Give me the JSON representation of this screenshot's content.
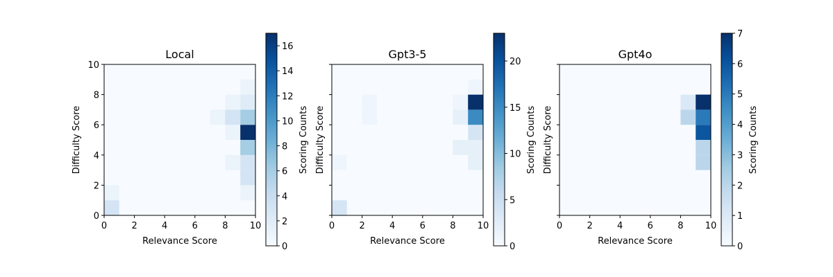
{
  "chart_data": [
    {
      "type": "heatmap",
      "title": "Local",
      "xlabel": "Relevance Score",
      "ylabel": "Difficulty Score",
      "xlim": [
        0,
        10
      ],
      "ylim": [
        0,
        10
      ],
      "x_ticks": [
        0,
        2,
        4,
        6,
        8,
        10
      ],
      "y_ticks": [
        0,
        2,
        4,
        6,
        8,
        10
      ],
      "y_tick_labels_visible": true,
      "colormap": "Blues",
      "colorbar": {
        "label": "Scoring Counts",
        "min": 0,
        "max": 17,
        "ticks": [
          0,
          2,
          4,
          6,
          8,
          10,
          12,
          14,
          16
        ]
      },
      "cells": [
        {
          "x": 0,
          "y": 0,
          "value": 3
        },
        {
          "x": 0,
          "y": 1,
          "value": 1
        },
        {
          "x": 9,
          "y": 1,
          "value": 1
        },
        {
          "x": 9,
          "y": 2,
          "value": 3
        },
        {
          "x": 9,
          "y": 3,
          "value": 3
        },
        {
          "x": 8,
          "y": 3,
          "value": 1
        },
        {
          "x": 9,
          "y": 4,
          "value": 6
        },
        {
          "x": 8,
          "y": 5,
          "value": 1
        },
        {
          "x": 9,
          "y": 5,
          "value": 17
        },
        {
          "x": 7,
          "y": 6,
          "value": 1
        },
        {
          "x": 8,
          "y": 6,
          "value": 3
        },
        {
          "x": 9,
          "y": 6,
          "value": 6
        },
        {
          "x": 8,
          "y": 7,
          "value": 1
        },
        {
          "x": 9,
          "y": 7,
          "value": 2
        },
        {
          "x": 9,
          "y": 8,
          "value": 1
        }
      ]
    },
    {
      "type": "heatmap",
      "title": "Gpt3-5",
      "xlabel": "Relevance Score",
      "ylabel": "Difficulty Score",
      "xlim": [
        0,
        10
      ],
      "ylim": [
        0,
        10
      ],
      "x_ticks": [
        0,
        2,
        4,
        6,
        8,
        10
      ],
      "y_ticks": [
        0,
        2,
        4,
        6,
        8,
        10
      ],
      "y_tick_labels_visible": false,
      "colormap": "Blues",
      "colorbar": {
        "label": "Scoring Counts",
        "min": 0,
        "max": 23,
        "ticks": [
          0,
          5,
          10,
          15,
          20
        ]
      },
      "cells": [
        {
          "x": 0,
          "y": 0,
          "value": 4
        },
        {
          "x": 0,
          "y": 3,
          "value": 1
        },
        {
          "x": 9,
          "y": 3,
          "value": 2
        },
        {
          "x": 8,
          "y": 4,
          "value": 2
        },
        {
          "x": 9,
          "y": 4,
          "value": 2
        },
        {
          "x": 9,
          "y": 5,
          "value": 4
        },
        {
          "x": 2,
          "y": 6,
          "value": 1
        },
        {
          "x": 8,
          "y": 6,
          "value": 2
        },
        {
          "x": 9,
          "y": 6,
          "value": 15
        },
        {
          "x": 2,
          "y": 7,
          "value": 1
        },
        {
          "x": 8,
          "y": 7,
          "value": 1
        },
        {
          "x": 9,
          "y": 7,
          "value": 23
        },
        {
          "x": 9,
          "y": 8,
          "value": 1
        }
      ]
    },
    {
      "type": "heatmap",
      "title": "Gpt4o",
      "xlabel": "Relevance Score",
      "ylabel": "Difficulty Score",
      "xlim": [
        0,
        10
      ],
      "ylim": [
        0,
        10
      ],
      "x_ticks": [
        0,
        2,
        4,
        6,
        8,
        10
      ],
      "y_ticks": [
        0,
        2,
        4,
        6,
        8,
        10
      ],
      "y_tick_labels_visible": false,
      "colormap": "Blues",
      "colorbar": {
        "label": "Scoring Counts",
        "min": 0,
        "max": 7,
        "ticks": [
          0,
          1,
          2,
          3,
          4,
          5,
          6,
          7
        ]
      },
      "cells": [
        {
          "x": 9,
          "y": 3,
          "value": 2
        },
        {
          "x": 9,
          "y": 4,
          "value": 2
        },
        {
          "x": 9,
          "y": 5,
          "value": 6
        },
        {
          "x": 8,
          "y": 6,
          "value": 2
        },
        {
          "x": 9,
          "y": 6,
          "value": 5
        },
        {
          "x": 8,
          "y": 7,
          "value": 1
        },
        {
          "x": 9,
          "y": 7,
          "value": 7
        }
      ]
    }
  ]
}
